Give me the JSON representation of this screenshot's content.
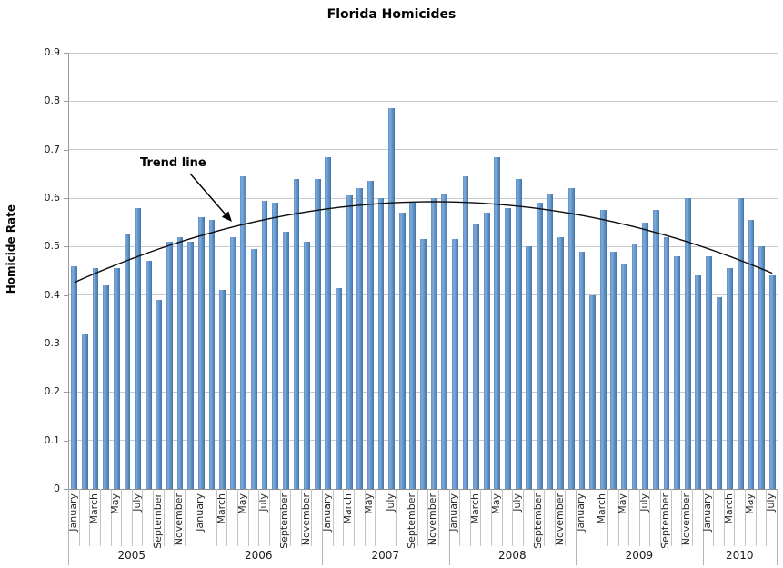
{
  "title": "Florida Homicides",
  "y_axis": {
    "title": "Homicide Rate",
    "tick_labels": [
      "0",
      "0.1",
      "0.2",
      "0.3",
      "0.4",
      "0.5",
      "0.6",
      "0.7",
      "0.8",
      "0.9"
    ]
  },
  "x_axis": {
    "years": [
      {
        "label": "2005",
        "n_months": 12,
        "month_labels": [
          "January",
          "March",
          "May",
          "July",
          "September",
          "November"
        ]
      },
      {
        "label": "2006",
        "n_months": 12,
        "month_labels": [
          "January",
          "March",
          "May",
          "July",
          "September",
          "November"
        ]
      },
      {
        "label": "2007",
        "n_months": 12,
        "month_labels": [
          "January",
          "March",
          "May",
          "July",
          "September",
          "November"
        ]
      },
      {
        "label": "2008",
        "n_months": 12,
        "month_labels": [
          "January",
          "March",
          "May",
          "July",
          "September",
          "November"
        ]
      },
      {
        "label": "2009",
        "n_months": 12,
        "month_labels": [
          "January",
          "March",
          "May",
          "July",
          "September",
          "November"
        ]
      },
      {
        "label": "2010",
        "n_months": 7,
        "month_labels": [
          "January",
          "March",
          "May",
          "July"
        ]
      }
    ]
  },
  "annotation": {
    "label": "Trend line"
  },
  "colors": {
    "bar_base": "#6094CA",
    "bar_gradient": [
      "#5E8FC4",
      "#7FA9DA",
      "#5E92C8",
      "#45749F"
    ],
    "trendline": "#000000",
    "gridline": "#C9C9C9",
    "axis": "#9B9B9B"
  },
  "chart_data": {
    "type": "bar",
    "title": "Florida Homicides",
    "xlabel": "",
    "ylabel": "Homicide Rate",
    "ylim": [
      0,
      0.9
    ],
    "ytick_step": 0.1,
    "grid": true,
    "legend": "none",
    "x": [
      "2005-01",
      "2005-02",
      "2005-03",
      "2005-04",
      "2005-05",
      "2005-06",
      "2005-07",
      "2005-08",
      "2005-09",
      "2005-10",
      "2005-11",
      "2005-12",
      "2006-01",
      "2006-02",
      "2006-03",
      "2006-04",
      "2006-05",
      "2006-06",
      "2006-07",
      "2006-08",
      "2006-09",
      "2006-10",
      "2006-11",
      "2006-12",
      "2007-01",
      "2007-02",
      "2007-03",
      "2007-04",
      "2007-05",
      "2007-06",
      "2007-07",
      "2007-08",
      "2007-09",
      "2007-10",
      "2007-11",
      "2007-12",
      "2008-01",
      "2008-02",
      "2008-03",
      "2008-04",
      "2008-05",
      "2008-06",
      "2008-07",
      "2008-08",
      "2008-09",
      "2008-10",
      "2008-11",
      "2008-12",
      "2009-01",
      "2009-02",
      "2009-03",
      "2009-04",
      "2009-05",
      "2009-06",
      "2009-07",
      "2009-08",
      "2009-09",
      "2009-10",
      "2009-11",
      "2009-12",
      "2010-01",
      "2010-02",
      "2010-03",
      "2010-04",
      "2010-05",
      "2010-06",
      "2010-07"
    ],
    "values": [
      0.46,
      0.32,
      0.455,
      0.42,
      0.455,
      0.525,
      0.58,
      0.47,
      0.39,
      0.51,
      0.52,
      0.51,
      0.56,
      0.555,
      0.41,
      0.52,
      0.645,
      0.495,
      0.595,
      0.59,
      0.53,
      0.64,
      0.51,
      0.64,
      0.685,
      0.415,
      0.605,
      0.62,
      0.635,
      0.6,
      0.785,
      0.57,
      0.59,
      0.515,
      0.6,
      0.61,
      0.515,
      0.645,
      0.545,
      0.57,
      0.685,
      0.58,
      0.64,
      0.5,
      0.59,
      0.61,
      0.52,
      0.62,
      0.49,
      0.4,
      0.575,
      0.49,
      0.465,
      0.505,
      0.55,
      0.575,
      0.52,
      0.48,
      0.6,
      0.44,
      0.48,
      0.395,
      0.455,
      0.6,
      0.555,
      0.5,
      0.44
    ],
    "trendline": {
      "label": "Trend line",
      "type": "quadratic",
      "formula": "value = 0.5925 - 0.000144 * (monthIndex - 34)^2",
      "peak_value": 0.5925,
      "peak_month_index": 34,
      "start_value": 0.426,
      "end_value": 0.445,
      "color": "#000000"
    }
  }
}
